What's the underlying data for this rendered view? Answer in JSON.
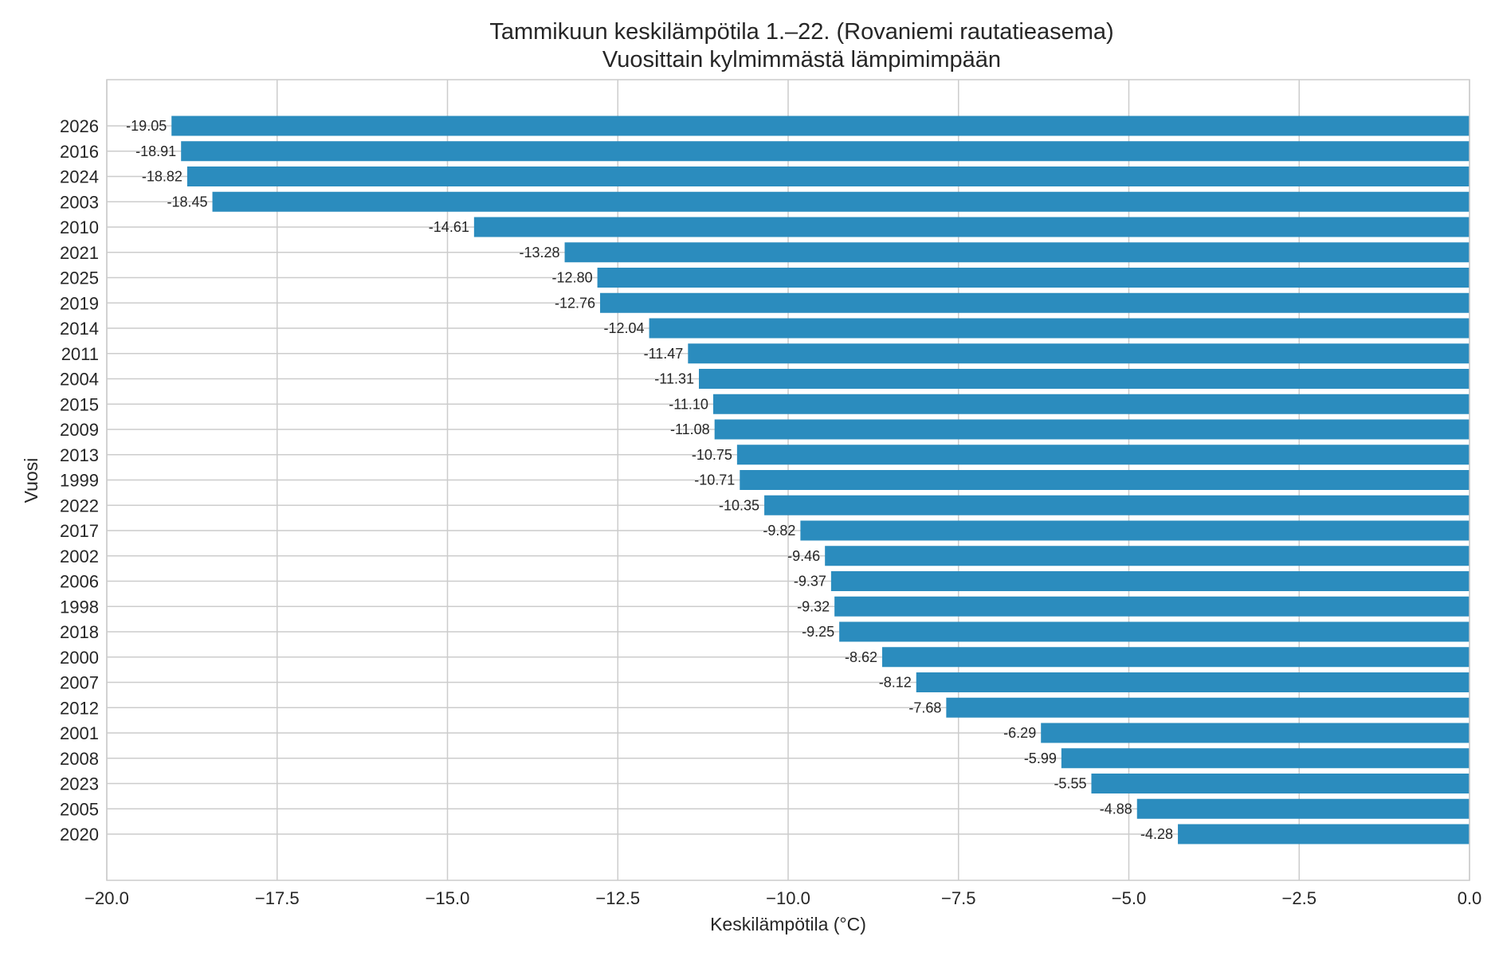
{
  "chart_data": {
    "type": "bar",
    "orientation": "horizontal",
    "title": "Tammikuun keskilämpötila 1.–22. (Rovaniemi rautatieasema)",
    "subtitle": "Vuosittain kylmimmästä lämpimimpään",
    "xlabel": "Keskilämpötila (°C)",
    "ylabel": "Vuosi",
    "xlim": [
      -20.0,
      0.0
    ],
    "xticks": [
      -20.0,
      -17.5,
      -15.0,
      -12.5,
      -10.0,
      -7.5,
      -5.0,
      -2.5,
      0.0
    ],
    "xtick_labels": [
      "−20.0",
      "−17.5",
      "−15.0",
      "−12.5",
      "−10.0",
      "−7.5",
      "−5.0",
      "−2.5",
      "0.0"
    ],
    "grid": true,
    "bar_color": "#2b8cbe",
    "categories": [
      "2026",
      "2016",
      "2024",
      "2003",
      "2010",
      "2021",
      "2025",
      "2019",
      "2014",
      "2011",
      "2004",
      "2015",
      "2009",
      "2013",
      "1999",
      "2022",
      "2017",
      "2002",
      "2006",
      "1998",
      "2018",
      "2000",
      "2007",
      "2012",
      "2001",
      "2008",
      "2023",
      "2005",
      "2020"
    ],
    "values": [
      -19.05,
      -18.91,
      -18.82,
      -18.45,
      -14.61,
      -13.28,
      -12.8,
      -12.76,
      -12.04,
      -11.47,
      -11.31,
      -11.1,
      -11.08,
      -10.75,
      -10.71,
      -10.35,
      -9.82,
      -9.46,
      -9.37,
      -9.32,
      -9.25,
      -8.62,
      -8.12,
      -7.68,
      -6.29,
      -5.99,
      -5.55,
      -4.88,
      -4.28
    ],
    "value_labels": [
      "-19.05",
      "-18.91",
      "-18.82",
      "-18.45",
      "-14.61",
      "-13.28",
      "-12.80",
      "-12.76",
      "-12.04",
      "-11.47",
      "-11.31",
      "-11.10",
      "-11.08",
      "-10.75",
      "-10.71",
      "-10.35",
      "-9.82",
      "-9.46",
      "-9.37",
      "-9.32",
      "-9.25",
      "-8.62",
      "-8.12",
      "-7.68",
      "-6.29",
      "-5.99",
      "-5.55",
      "-4.88",
      "-4.28"
    ]
  }
}
